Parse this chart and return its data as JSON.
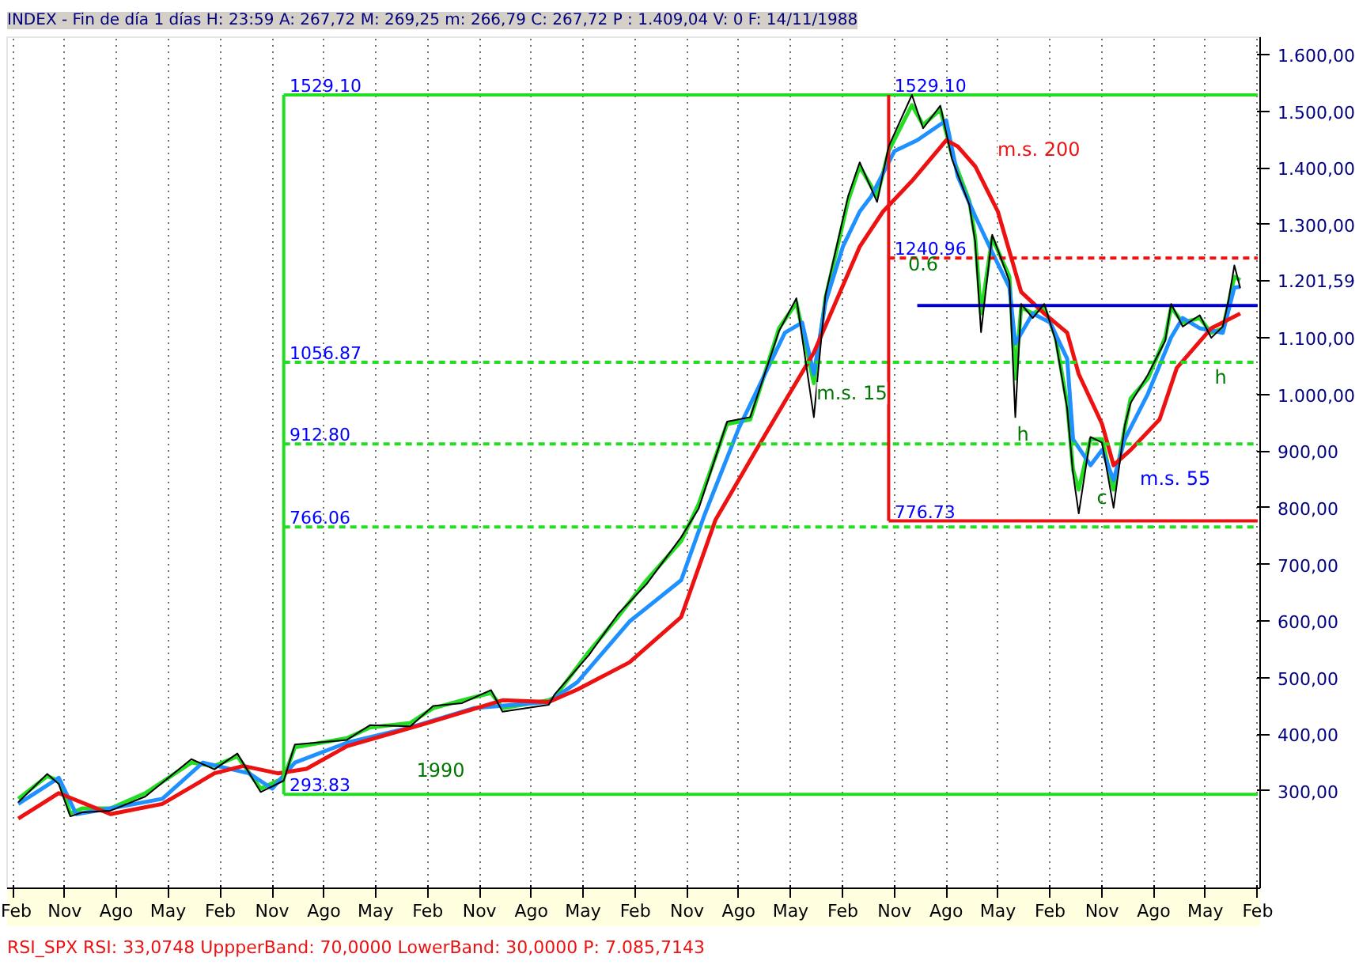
{
  "chart_data": {
    "type": "line",
    "title": "INDEX - Fin de día 1 días H: 23:59 A: 267,72 M: 269,25 m: 266,79 C: 267,72 P : 1.409,04 V: 0 F: 14/11/1988",
    "xlim": [
      "1989-01-01",
      "2007-02-14"
    ],
    "ylim": [
      128,
      1631
    ],
    "xticks": [
      {
        "value": "1989-02",
        "label": "Feb"
      },
      {
        "value": "1989-11",
        "label": "Nov"
      },
      {
        "value": "1990-08",
        "label": "Ago"
      },
      {
        "value": "1991-05",
        "label": "May"
      },
      {
        "value": "1992-02",
        "label": "Feb"
      },
      {
        "value": "1992-11",
        "label": "Nov"
      },
      {
        "value": "1993-08",
        "label": "Ago"
      },
      {
        "value": "1994-05",
        "label": "May"
      },
      {
        "value": "1995-02",
        "label": "Feb"
      },
      {
        "value": "1995-11",
        "label": "Nov"
      },
      {
        "value": "1996-08",
        "label": "Ago"
      },
      {
        "value": "1997-05",
        "label": "May"
      },
      {
        "value": "1998-02",
        "label": "Feb"
      },
      {
        "value": "1998-11",
        "label": "Nov"
      },
      {
        "value": "1999-08",
        "label": "Ago"
      },
      {
        "value": "2000-05",
        "label": "May"
      },
      {
        "value": "2001-02",
        "label": "Feb"
      },
      {
        "value": "2001-11",
        "label": "Nov"
      },
      {
        "value": "2002-08",
        "label": "Ago"
      },
      {
        "value": "2003-05",
        "label": "May"
      },
      {
        "value": "2004-02",
        "label": "Feb"
      },
      {
        "value": "2004-11",
        "label": "Nov"
      },
      {
        "value": "2005-08",
        "label": "Ago"
      },
      {
        "value": "2006-05",
        "label": "May"
      },
      {
        "value": "2007-02",
        "label": "Feb"
      }
    ],
    "yticks": [
      {
        "value": 300,
        "label": "300,00"
      },
      {
        "value": 400,
        "label": "400,00"
      },
      {
        "value": 500,
        "label": "500,00"
      },
      {
        "value": 600,
        "label": "600,00"
      },
      {
        "value": 700,
        "label": "700,00"
      },
      {
        "value": 800,
        "label": "800,00"
      },
      {
        "value": 900,
        "label": "900,00"
      },
      {
        "value": 1000,
        "label": "1.000,00"
      },
      {
        "value": 1100,
        "label": "1.100,00"
      },
      {
        "value": 1200,
        "label": null
      },
      {
        "value": 1201.59,
        "label": "1.201,59"
      },
      {
        "value": 1300,
        "label": "1.300,00"
      },
      {
        "value": 1400,
        "label": "1.400,00"
      },
      {
        "value": 1500,
        "label": "1.500,00"
      },
      {
        "value": 1600,
        "label": "1.600,00"
      }
    ],
    "grid": "x",
    "series": [
      {
        "color": "#000000",
        "x": [
          "1989-03",
          "1989-08",
          "1989-10",
          "1989-12",
          "1990-02",
          "1990-07",
          "1991-01",
          "1991-09",
          "1992-01",
          "1992-05",
          "1992-09",
          "1993-01",
          "1993-03",
          "1993-12",
          "1994-04",
          "1994-11",
          "1995-03",
          "1995-08",
          "1996-01",
          "1996-03",
          "1996-11",
          "1996-12",
          "1997-06",
          "1997-11",
          "1998-04",
          "1998-10",
          "1999-01",
          "1999-06",
          "1999-10",
          "2000-03",
          "2000-06",
          "2000-09",
          "2000-11",
          "2001-03",
          "2001-05",
          "2001-08",
          "2001-10",
          "2002-02",
          "2002-04",
          "2002-07",
          "2002-09",
          "2002-12",
          "2003-01",
          "2003-02",
          "2003-04",
          "2003-07",
          "2003-08",
          "2003-09",
          "2003-11",
          "2004-01",
          "2004-03",
          "2004-05",
          "2004-06",
          "2004-07",
          "2004-09",
          "2004-11",
          "2005-01",
          "2005-03",
          "2005-04",
          "2005-07",
          "2005-10",
          "2005-11",
          "2006-01",
          "2006-04",
          "2006-06",
          "2006-08",
          "2006-09",
          "2006-10",
          "2006-11"
        ],
        "values": [
          280,
          330,
          312,
          255,
          262,
          265,
          290,
          356,
          338,
          366,
          298,
          318,
          382,
          390,
          416,
          414,
          450,
          455,
          478,
          440,
          452,
          470,
          540,
          612,
          665,
          748,
          798,
          952,
          960,
          1112,
          1170,
          960,
          1175,
          1350,
          1410,
          1340,
          1438,
          1529,
          1470,
          1510,
          1415,
          1335,
          1270,
          1110,
          1282,
          1200,
          960,
          1160,
          1135,
          1160,
          1095,
          975,
          860,
          790,
          925,
          915,
          800,
          945,
          985,
          1035,
          1095,
          1160,
          1120,
          1140,
          1100,
          1120,
          1168,
          1228,
          1188
        ]
      },
      {
        "color": "#22dd22",
        "x": [
          "1989-03",
          "1989-08",
          "1989-10",
          "1989-12",
          "1990-02",
          "1990-07",
          "1991-01",
          "1991-09",
          "1992-01",
          "1992-05",
          "1992-09",
          "1993-01",
          "1993-03",
          "1993-12",
          "1994-04",
          "1994-11",
          "1995-03",
          "1995-08",
          "1996-01",
          "1996-03",
          "1996-11",
          "1996-12",
          "1997-06",
          "1997-11",
          "1998-04",
          "1998-10",
          "1999-01",
          "1999-06",
          "1999-10",
          "2000-03",
          "2000-06",
          "2000-09",
          "2000-11",
          "2001-03",
          "2001-05",
          "2001-08",
          "2001-10",
          "2002-02",
          "2002-04",
          "2002-07",
          "2002-09",
          "2002-12",
          "2003-01",
          "2003-02",
          "2003-04",
          "2003-07",
          "2003-08",
          "2003-09",
          "2003-11",
          "2004-01",
          "2004-03",
          "2004-05",
          "2004-06",
          "2004-07",
          "2004-09",
          "2004-11",
          "2005-01",
          "2005-03",
          "2005-04",
          "2005-07",
          "2005-10",
          "2005-11",
          "2006-01",
          "2006-04",
          "2006-06",
          "2006-08",
          "2006-09",
          "2006-10",
          "2006-11"
        ],
        "values": [
          286,
          326,
          318,
          260,
          269,
          269,
          296,
          350,
          344,
          361,
          304,
          323,
          377,
          393,
          412,
          420,
          446,
          460,
          473,
          446,
          460,
          465,
          546,
          607,
          672,
          741,
          806,
          948,
          956,
          1117,
          1162,
          1020,
          1170,
          1342,
          1403,
          1350,
          1430,
          1511,
          1476,
          1503,
          1422,
          1342,
          1277,
          1143,
          1277,
          1208,
          1028,
          1154,
          1143,
          1154,
          1101,
          983,
          867,
          832,
          921,
          921,
          832,
          940,
          993,
          1028,
          1101,
          1154,
          1127,
          1135,
          1109,
          1117,
          1162,
          1208,
          1202
        ]
      },
      {
        "color": "#1e90ff",
        "x": [
          "1989-03",
          "1989-10",
          "1990-01",
          "1990-07",
          "1991-04",
          "1991-11",
          "1992-07",
          "1992-11",
          "1993-03",
          "1993-12",
          "1994-11",
          "1995-10",
          "1996-05",
          "1996-11",
          "1997-04",
          "1998-01",
          "1998-10",
          "1999-02",
          "1999-08",
          "2000-04",
          "2000-07",
          "2000-09",
          "2000-11",
          "2001-02",
          "2001-05",
          "2001-07",
          "2001-11",
          "2002-03",
          "2002-08",
          "2002-10",
          "2003-01",
          "2003-04",
          "2003-07",
          "2003-08",
          "2003-11",
          "2004-02",
          "2004-05",
          "2004-06",
          "2004-09",
          "2004-11",
          "2005-01",
          "2005-03",
          "2005-07",
          "2005-11",
          "2006-01",
          "2006-04",
          "2006-08",
          "2006-10",
          "2006-11"
        ],
        "values": [
          277,
          323,
          259,
          269,
          286,
          350,
          331,
          304,
          350,
          385,
          412,
          446,
          452,
          457,
          492,
          599,
          672,
          787,
          940,
          1109,
          1127,
          1036,
          1162,
          1261,
          1323,
          1350,
          1430,
          1449,
          1484,
          1385,
          1315,
          1251,
          1189,
          1090,
          1143,
          1127,
          1063,
          921,
          875,
          902,
          849,
          921,
          1001,
          1101,
          1135,
          1117,
          1109,
          1189,
          1190
        ]
      },
      {
        "color": "#ee1111",
        "x": [
          "1989-03",
          "1989-10",
          "1990-07",
          "1991-04",
          "1992-01",
          "1992-06",
          "1992-12",
          "1993-05",
          "1993-12",
          "1995-01",
          "1996-03",
          "1996-11",
          "1997-04",
          "1998-01",
          "1998-10",
          "1999-04",
          "1999-11",
          "2000-09",
          "2001-05",
          "2001-09",
          "2002-02",
          "2002-08",
          "2002-10",
          "2003-01",
          "2003-05",
          "2003-09",
          "2004-01",
          "2004-05",
          "2004-07",
          "2004-11",
          "2005-01",
          "2005-04",
          "2005-09",
          "2005-12",
          "2006-06",
          "2006-11"
        ],
        "values": [
          251,
          296,
          259,
          277,
          331,
          344,
          331,
          339,
          379,
          417,
          460,
          457,
          479,
          527,
          607,
          779,
          902,
          1074,
          1261,
          1323,
          1377,
          1449,
          1438,
          1403,
          1323,
          1181,
          1143,
          1109,
          1036,
          948,
          875,
          902,
          956,
          1047,
          1117,
          1143
        ]
      },
      {
        "color": "#22dd22",
        "x": [
          "1993-01",
          "1993-01"
        ],
        "values": [
          293.83,
          1529.1
        ]
      },
      {
        "color": "#22dd22",
        "x": [
          "1993-01",
          "2007-02"
        ],
        "values": [
          1529.1,
          1529.1
        ]
      },
      {
        "color": "#22dd22",
        "x": [
          "1993-01",
          "2007-02"
        ],
        "values": [
          293.83,
          293.83
        ]
      },
      {
        "color": "#22dd22",
        "x": [
          "1993-01",
          "2007-02"
        ],
        "values": [
          1056.87,
          1056.87
        ],
        "line_style": "dashed"
      },
      {
        "color": "#22dd22",
        "x": [
          "1993-01",
          "2007-02"
        ],
        "values": [
          912.8,
          912.8
        ],
        "line_style": "dashed"
      },
      {
        "color": "#22dd22",
        "x": [
          "1993-01",
          "2007-02"
        ],
        "values": [
          766.06,
          766.06
        ],
        "line_style": "dashed"
      },
      {
        "color": "#ee1111",
        "x": [
          "2001-10",
          "2001-10"
        ],
        "values": [
          776.73,
          1529.1
        ]
      },
      {
        "color": "#ee1111",
        "x": [
          "2001-10",
          "2007-02"
        ],
        "values": [
          776.73,
          776.73
        ]
      },
      {
        "color": "#ee1111",
        "x": [
          "2001-10",
          "2007-02"
        ],
        "values": [
          1240.96,
          1240.96
        ],
        "line_style": "dashed"
      },
      {
        "color": "#0000cc",
        "x": [
          "2002-03",
          "2007-02"
        ],
        "values": [
          1157,
          1157
        ]
      }
    ],
    "annotations": [
      {
        "text": "1529.10",
        "x": "1993-02",
        "y": 1529.1
      },
      {
        "text": "1056.87",
        "x": "1993-02",
        "y": 1056.87
      },
      {
        "text": "912.80",
        "x": "1993-02",
        "y": 912.8
      },
      {
        "text": "766.06",
        "x": "1993-02",
        "y": 766.06
      },
      {
        "text": "293.83",
        "x": "1993-02",
        "y": 293.83
      },
      {
        "text": "1529.10",
        "x": "2001-11",
        "y": 1529.1
      },
      {
        "text": "1240.96",
        "x": "2001-11",
        "y": 1240.96
      },
      {
        "text": "776.73",
        "x": "2001-11",
        "y": 776.73
      },
      "0.6",
      "1990",
      "m.s. 15",
      "m.s. 200",
      "m.s. 55",
      "h",
      "c",
      "h",
      "RSI_SPX RSI: 33,0748 UppperBand: 70,0000 LowerBand: 30,0000 P: 7.085,7143"
    ]
  }
}
